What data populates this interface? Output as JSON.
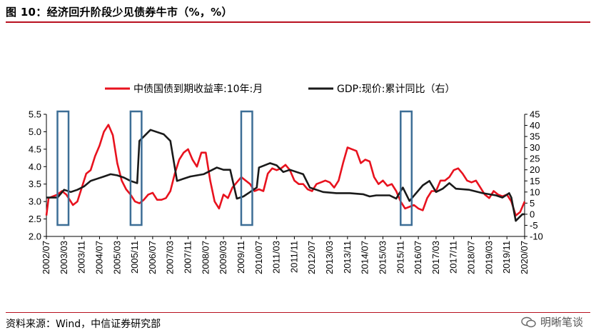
{
  "header": {
    "title": "图 10：经济回升阶段少见债券牛市（%，%）"
  },
  "footer": {
    "source": "资料来源：Wind，中信证券研究部",
    "watermark": "明晰笔谈"
  },
  "colors": {
    "accent": "#b8101f",
    "series1": "#e8121e",
    "series2": "#1a1a1a",
    "box": "#3d6e96"
  },
  "chart_data": {
    "type": "line",
    "legend": {
      "placement": "top",
      "entries": [
        "中债国债到期收益率:10年:月",
        "GDP:现价:累计同比（右）"
      ]
    },
    "x_ticks": [
      "2002/07",
      "2003/03",
      "2003/11",
      "2004/07",
      "2005/03",
      "2005/11",
      "2006/07",
      "2007/03",
      "2007/11",
      "2008/07",
      "2009/03",
      "2009/11",
      "2010/07",
      "2011/03",
      "2011/11",
      "2012/07",
      "2013/03",
      "2013/11",
      "2014/07",
      "2015/03",
      "2015/11",
      "2016/07",
      "2017/03",
      "2017/11",
      "2018/07",
      "2019/03",
      "2019/11",
      "2020/07"
    ],
    "y_left": {
      "min": 2.0,
      "max": 5.5,
      "ticks": [
        "2.0",
        "2.5",
        "3.0",
        "3.5",
        "4.0",
        "4.5",
        "5.0",
        "5.5"
      ]
    },
    "y_right": {
      "min": -10,
      "max": 45,
      "ticks": [
        "-10",
        "-5",
        "0",
        "5",
        "10",
        "15",
        "20",
        "25",
        "30",
        "35",
        "40",
        "45"
      ]
    },
    "highlight_periods": [
      {
        "start": "2002/12",
        "end": "2003/05"
      },
      {
        "start": "2005/09",
        "end": "2006/02"
      },
      {
        "start": "2009/11",
        "end": "2010/04"
      },
      {
        "start": "2015/11",
        "end": "2016/04"
      }
    ],
    "series": [
      {
        "name": "中债国债到期收益率:10年:月",
        "axis": "left",
        "points": [
          [
            "2002/07",
            2.6
          ],
          [
            "2002/08",
            3.1
          ],
          [
            "2002/10",
            3.15
          ],
          [
            "2002/12",
            3.2
          ],
          [
            "2003/02",
            3.3
          ],
          [
            "2003/04",
            3.2
          ],
          [
            "2003/06",
            3.0
          ],
          [
            "2003/07",
            2.9
          ],
          [
            "2003/09",
            3.0
          ],
          [
            "2003/11",
            3.4
          ],
          [
            "2004/01",
            3.8
          ],
          [
            "2004/03",
            3.9
          ],
          [
            "2004/05",
            4.3
          ],
          [
            "2004/07",
            4.6
          ],
          [
            "2004/09",
            5.0
          ],
          [
            "2004/11",
            5.2
          ],
          [
            "2005/01",
            4.9
          ],
          [
            "2005/03",
            4.1
          ],
          [
            "2005/05",
            3.6
          ],
          [
            "2005/07",
            3.35
          ],
          [
            "2005/09",
            3.2
          ],
          [
            "2005/11",
            3.0
          ],
          [
            "2006/01",
            2.95
          ],
          [
            "2006/03",
            3.05
          ],
          [
            "2006/05",
            3.2
          ],
          [
            "2006/07",
            3.25
          ],
          [
            "2006/09",
            3.05
          ],
          [
            "2006/11",
            3.05
          ],
          [
            "2007/01",
            3.1
          ],
          [
            "2007/03",
            3.3
          ],
          [
            "2007/05",
            3.8
          ],
          [
            "2007/07",
            4.2
          ],
          [
            "2007/09",
            4.4
          ],
          [
            "2007/11",
            4.5
          ],
          [
            "2008/01",
            4.2
          ],
          [
            "2008/03",
            4.0
          ],
          [
            "2008/05",
            4.4
          ],
          [
            "2008/07",
            4.4
          ],
          [
            "2008/09",
            3.6
          ],
          [
            "2008/11",
            3.0
          ],
          [
            "2009/01",
            2.8
          ],
          [
            "2009/03",
            3.2
          ],
          [
            "2009/05",
            3.1
          ],
          [
            "2009/07",
            3.4
          ],
          [
            "2009/09",
            3.55
          ],
          [
            "2009/11",
            3.7
          ],
          [
            "2010/01",
            3.6
          ],
          [
            "2010/03",
            3.5
          ],
          [
            "2010/05",
            3.3
          ],
          [
            "2010/07",
            3.35
          ],
          [
            "2010/09",
            3.3
          ],
          [
            "2010/11",
            3.8
          ],
          [
            "2011/01",
            3.95
          ],
          [
            "2011/03",
            3.9
          ],
          [
            "2011/05",
            3.95
          ],
          [
            "2011/07",
            4.05
          ],
          [
            "2011/09",
            3.9
          ],
          [
            "2011/11",
            3.6
          ],
          [
            "2012/01",
            3.5
          ],
          [
            "2012/03",
            3.5
          ],
          [
            "2012/05",
            3.35
          ],
          [
            "2012/07",
            3.3
          ],
          [
            "2012/09",
            3.5
          ],
          [
            "2012/11",
            3.55
          ],
          [
            "2013/01",
            3.6
          ],
          [
            "2013/03",
            3.55
          ],
          [
            "2013/05",
            3.4
          ],
          [
            "2013/07",
            3.6
          ],
          [
            "2013/09",
            4.1
          ],
          [
            "2013/11",
            4.55
          ],
          [
            "2014/01",
            4.5
          ],
          [
            "2014/03",
            4.45
          ],
          [
            "2014/05",
            4.1
          ],
          [
            "2014/07",
            4.2
          ],
          [
            "2014/09",
            4.15
          ],
          [
            "2014/11",
            3.7
          ],
          [
            "2015/01",
            3.5
          ],
          [
            "2015/03",
            3.6
          ],
          [
            "2015/05",
            3.45
          ],
          [
            "2015/07",
            3.5
          ],
          [
            "2015/09",
            3.3
          ],
          [
            "2015/11",
            3.0
          ],
          [
            "2016/01",
            2.8
          ],
          [
            "2016/03",
            2.85
          ],
          [
            "2016/05",
            2.9
          ],
          [
            "2016/07",
            2.8
          ],
          [
            "2016/09",
            2.75
          ],
          [
            "2016/11",
            3.1
          ],
          [
            "2017/01",
            3.3
          ],
          [
            "2017/03",
            3.3
          ],
          [
            "2017/05",
            3.6
          ],
          [
            "2017/07",
            3.6
          ],
          [
            "2017/09",
            3.7
          ],
          [
            "2017/11",
            3.9
          ],
          [
            "2018/01",
            3.95
          ],
          [
            "2018/03",
            3.8
          ],
          [
            "2018/05",
            3.6
          ],
          [
            "2018/07",
            3.55
          ],
          [
            "2018/09",
            3.6
          ],
          [
            "2018/11",
            3.4
          ],
          [
            "2019/01",
            3.2
          ],
          [
            "2019/03",
            3.1
          ],
          [
            "2019/05",
            3.3
          ],
          [
            "2019/07",
            3.2
          ],
          [
            "2019/09",
            3.15
          ],
          [
            "2019/11",
            3.2
          ],
          [
            "2020/01",
            3.0
          ],
          [
            "2020/03",
            2.6
          ],
          [
            "2020/05",
            2.7
          ],
          [
            "2020/07",
            3.0
          ]
        ]
      },
      {
        "name": "GDP:现价:累计同比（右）",
        "axis": "right",
        "points": [
          [
            "2002/07",
            7.5
          ],
          [
            "2002/12",
            7.5
          ],
          [
            "2003/03",
            11
          ],
          [
            "2003/06",
            10
          ],
          [
            "2003/09",
            11
          ],
          [
            "2003/12",
            12.5
          ],
          [
            "2004/03",
            15
          ],
          [
            "2004/06",
            16
          ],
          [
            "2004/09",
            17
          ],
          [
            "2004/12",
            18
          ],
          [
            "2005/03",
            17.5
          ],
          [
            "2005/06",
            16.5
          ],
          [
            "2005/09",
            15
          ],
          [
            "2005/12",
            14
          ],
          [
            "2006/01",
            33
          ],
          [
            "2006/06",
            38
          ],
          [
            "2006/12",
            36
          ],
          [
            "2007/03",
            33
          ],
          [
            "2007/06",
            15
          ],
          [
            "2007/12",
            17
          ],
          [
            "2008/03",
            17.5
          ],
          [
            "2008/06",
            18
          ],
          [
            "2008/12",
            21
          ],
          [
            "2009/03",
            20
          ],
          [
            "2009/06",
            20
          ],
          [
            "2009/09",
            7
          ],
          [
            "2009/12",
            8
          ],
          [
            "2010/03",
            10
          ],
          [
            "2010/06",
            12
          ],
          [
            "2010/07",
            21
          ],
          [
            "2010/12",
            23
          ],
          [
            "2011/03",
            22
          ],
          [
            "2011/06",
            19
          ],
          [
            "2011/09",
            20
          ],
          [
            "2011/12",
            19
          ],
          [
            "2012/03",
            18
          ],
          [
            "2012/06",
            12
          ],
          [
            "2012/12",
            10
          ],
          [
            "2013/06",
            9.5
          ],
          [
            "2013/12",
            9.5
          ],
          [
            "2014/06",
            9
          ],
          [
            "2014/09",
            8
          ],
          [
            "2014/12",
            8.5
          ],
          [
            "2015/06",
            8.5
          ],
          [
            "2015/09",
            7
          ],
          [
            "2015/12",
            12
          ],
          [
            "2016/03",
            6
          ],
          [
            "2016/09",
            13
          ],
          [
            "2016/12",
            15
          ],
          [
            "2017/03",
            10
          ],
          [
            "2017/06",
            11.5
          ],
          [
            "2017/09",
            14
          ],
          [
            "2017/12",
            11.5
          ],
          [
            "2018/06",
            11
          ],
          [
            "2018/12",
            9.5
          ],
          [
            "2019/06",
            8.5
          ],
          [
            "2019/09",
            7.5
          ],
          [
            "2019/12",
            9.5
          ],
          [
            "2020/01",
            7.5
          ],
          [
            "2020/03",
            -3
          ],
          [
            "2020/06",
            0
          ],
          [
            "2020/07",
            0
          ]
        ]
      }
    ]
  }
}
